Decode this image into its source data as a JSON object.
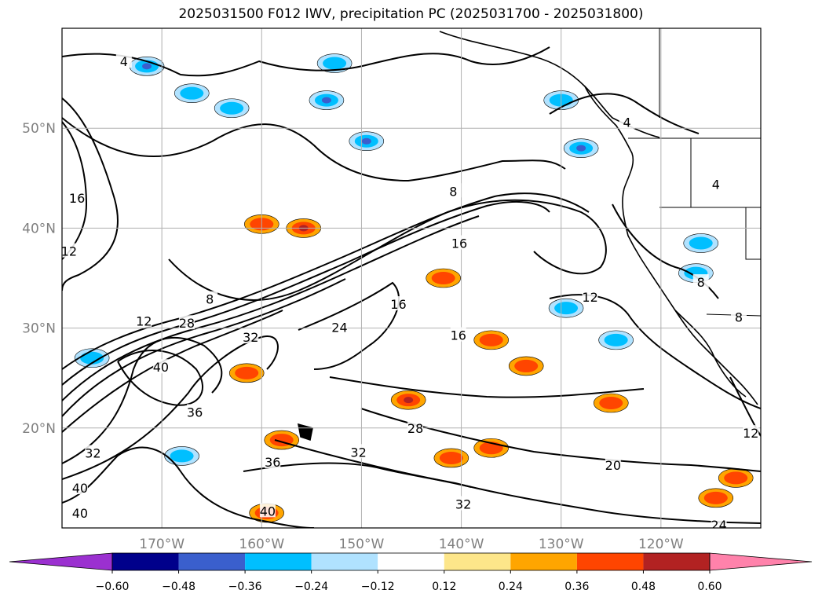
{
  "title": "2025031500 F012 IWV, precipitation PC (2025031700 - 2025031800)",
  "chart_data": {
    "type": "contour_map",
    "title": "2025031500 F012 IWV, precipitation PC (2025031700 - 2025031800)",
    "projection": "PlateCarree",
    "lon_range": [
      -180,
      -110
    ],
    "lat_range": [
      10,
      60
    ],
    "grid": true,
    "x_ticks": [
      "170°W",
      "160°W",
      "150°W",
      "140°W",
      "130°W",
      "120°W"
    ],
    "x_tick_values": [
      -170,
      -160,
      -150,
      -140,
      -130,
      -120
    ],
    "y_ticks": [
      "20°N",
      "30°N",
      "40°N",
      "50°N"
    ],
    "y_tick_values": [
      20,
      30,
      40,
      50
    ],
    "contour_labels": [
      {
        "text": "4",
        "lon": -173.8,
        "lat": 56.7
      },
      {
        "text": "4",
        "lon": -123.4,
        "lat": 50.6
      },
      {
        "text": "4",
        "lon": -114.5,
        "lat": 44.4
      },
      {
        "text": "16",
        "lon": -178.5,
        "lat": 43.0
      },
      {
        "text": "12",
        "lon": -179.3,
        "lat": 37.7
      },
      {
        "text": "8",
        "lon": -140.8,
        "lat": 43.7
      },
      {
        "text": "16",
        "lon": -140.2,
        "lat": 38.5
      },
      {
        "text": "8",
        "lon": -165.2,
        "lat": 32.9
      },
      {
        "text": "12",
        "lon": -171.8,
        "lat": 30.7
      },
      {
        "text": "28",
        "lon": -167.5,
        "lat": 30.5
      },
      {
        "text": "24",
        "lon": -152.2,
        "lat": 30.1
      },
      {
        "text": "16",
        "lon": -146.3,
        "lat": 32.4
      },
      {
        "text": "16",
        "lon": -140.3,
        "lat": 29.3
      },
      {
        "text": "12",
        "lon": -127.1,
        "lat": 33.1
      },
      {
        "text": "32",
        "lon": -161.1,
        "lat": 29.1
      },
      {
        "text": "40",
        "lon": -170.1,
        "lat": 26.1
      },
      {
        "text": "36",
        "lon": -166.7,
        "lat": 21.6
      },
      {
        "text": "28",
        "lon": -144.6,
        "lat": 20.0
      },
      {
        "text": "32",
        "lon": -150.3,
        "lat": 17.6
      },
      {
        "text": "36",
        "lon": -158.9,
        "lat": 16.6
      },
      {
        "text": "32",
        "lon": -176.9,
        "lat": 17.5
      },
      {
        "text": "40",
        "lon": -178.2,
        "lat": 14.0
      },
      {
        "text": "40",
        "lon": -178.2,
        "lat": 11.5
      },
      {
        "text": "40",
        "lon": -159.4,
        "lat": 11.7
      },
      {
        "text": "32",
        "lon": -139.8,
        "lat": 12.4
      },
      {
        "text": "20",
        "lon": -124.8,
        "lat": 16.3
      },
      {
        "text": "24",
        "lon": -114.2,
        "lat": 10.3
      },
      {
        "text": "12",
        "lon": -111.0,
        "lat": 19.5
      },
      {
        "text": "8",
        "lon": -112.2,
        "lat": 31.1
      },
      {
        "text": "8",
        "lon": -116.0,
        "lat": 34.6
      }
    ],
    "colorbar": {
      "orientation": "horizontal",
      "extend": "both",
      "ticks": [
        "−0.60",
        "−0.48",
        "−0.36",
        "−0.24",
        "−0.12",
        "0.12",
        "0.24",
        "0.36",
        "0.48",
        "0.60"
      ],
      "levels": [
        -0.6,
        -0.48,
        -0.36,
        -0.24,
        -0.12,
        0.12,
        0.24,
        0.36,
        0.48,
        0.6
      ],
      "colors": [
        "#9b30d0",
        "#00008b",
        "#3a5fcd",
        "#00bfff",
        "#b0e2ff",
        "#ffffff",
        "#fde68a",
        "#ffa500",
        "#ff4500",
        "#b22222",
        "#ff82ab"
      ]
    },
    "precip_blobs": [
      {
        "lon": -171.5,
        "lat": 56.2,
        "value": -0.48
      },
      {
        "lon": -167.0,
        "lat": 53.5,
        "value": -0.36
      },
      {
        "lon": -163.0,
        "lat": 52.0,
        "value": -0.36
      },
      {
        "lon": -153.5,
        "lat": 52.8,
        "value": -0.48
      },
      {
        "lon": -149.5,
        "lat": 48.7,
        "value": -0.48
      },
      {
        "lon": -152.7,
        "lat": 56.5,
        "value": -0.36
      },
      {
        "lon": -130.0,
        "lat": 52.8,
        "value": -0.36
      },
      {
        "lon": -128.0,
        "lat": 48.0,
        "value": -0.48
      },
      {
        "lon": -160.0,
        "lat": 40.4,
        "value": 0.36
      },
      {
        "lon": -155.8,
        "lat": 40.0,
        "value": 0.48
      },
      {
        "lon": -141.8,
        "lat": 35.0,
        "value": 0.36
      },
      {
        "lon": -129.5,
        "lat": 32.0,
        "value": -0.36
      },
      {
        "lon": -124.5,
        "lat": 28.8,
        "value": -0.36
      },
      {
        "lon": -145.3,
        "lat": 22.8,
        "value": 0.48
      },
      {
        "lon": -161.5,
        "lat": 25.5,
        "value": 0.36
      },
      {
        "lon": -137.0,
        "lat": 28.8,
        "value": 0.36
      },
      {
        "lon": -133.5,
        "lat": 26.2,
        "value": 0.36
      },
      {
        "lon": -125.0,
        "lat": 22.5,
        "value": 0.36
      },
      {
        "lon": -116.0,
        "lat": 38.5,
        "value": -0.36
      },
      {
        "lon": -116.5,
        "lat": 35.5,
        "value": -0.36
      },
      {
        "lon": -141.0,
        "lat": 17.0,
        "value": 0.36
      },
      {
        "lon": -137.0,
        "lat": 18.0,
        "value": 0.36
      },
      {
        "lon": -158.0,
        "lat": 18.8,
        "value": 0.36
      },
      {
        "lon": -177.0,
        "lat": 27.0,
        "value": -0.36
      },
      {
        "lon": -168.0,
        "lat": 17.2,
        "value": -0.36
      },
      {
        "lon": -159.5,
        "lat": 11.5,
        "value": 0.36
      },
      {
        "lon": -112.5,
        "lat": 15.0,
        "value": 0.36
      },
      {
        "lon": -114.5,
        "lat": 13.0,
        "value": 0.36
      }
    ]
  }
}
